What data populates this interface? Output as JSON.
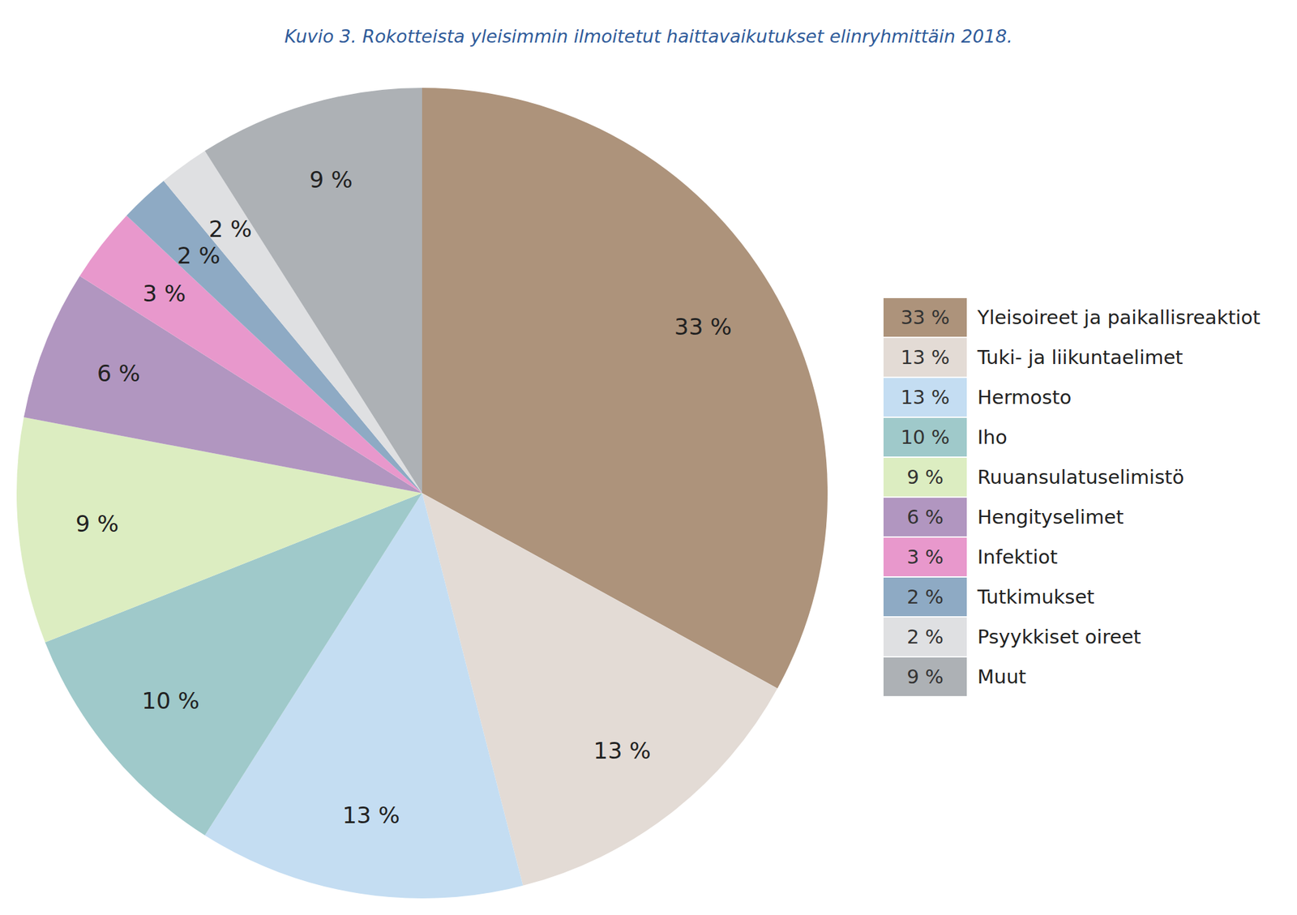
{
  "chart_data": {
    "type": "pie",
    "title": "Kuvio 3. Rokotteista yleisimmin ilmoitetut haittavaikutukset elinryhmittäin 2018.",
    "categories": [
      "Yleisoireet ja paikallisreaktiot",
      "Tuki- ja liikuntaelimet",
      "Hermosto",
      "Iho",
      "Ruuansulatuselimistö",
      "Hengityselimet",
      "Infektiot",
      "Tutkimukset",
      "Psyykkiset oireet",
      "Muut"
    ],
    "values": [
      33,
      13,
      13,
      10,
      9,
      6,
      3,
      2,
      2,
      9
    ],
    "value_labels": [
      "33 %",
      "13 %",
      "13 %",
      "10 %",
      "9 %",
      "6 %",
      "3 %",
      "2 %",
      "2 %",
      "9 %"
    ],
    "colors": [
      "#ad937b",
      "#e3dbd5",
      "#c4ddf2",
      "#9fc9ca",
      "#dcedc1",
      "#b196c0",
      "#e898cc",
      "#8eaac4",
      "#dfe0e2",
      "#adb1b5"
    ],
    "data_labels": true,
    "legend": "right"
  }
}
